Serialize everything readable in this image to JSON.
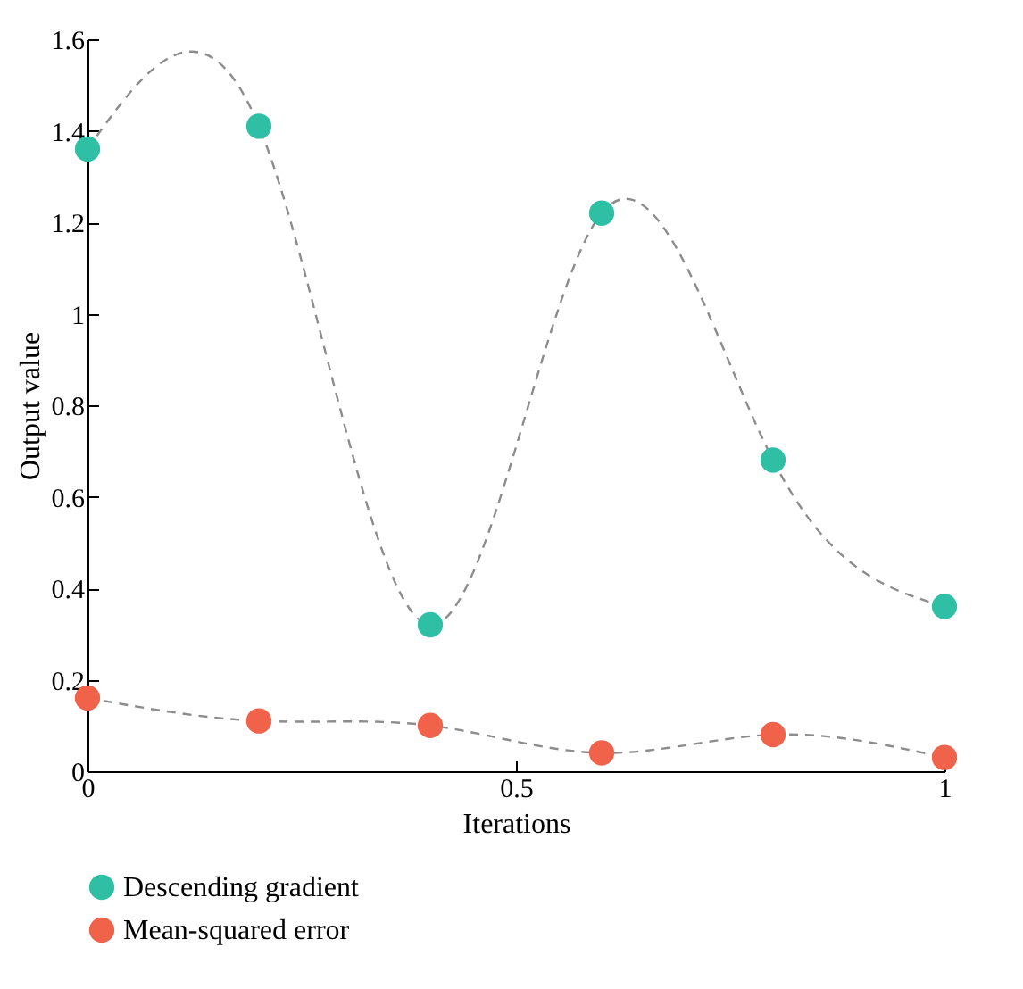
{
  "chart_data": {
    "type": "line",
    "xlabel": "Iterations",
    "ylabel": "Output value",
    "x": [
      0,
      0.2,
      0.4,
      0.6,
      0.8,
      1
    ],
    "series": [
      {
        "name": "Descending gradient",
        "color": "#2ebfa5",
        "values": [
          1.36,
          1.41,
          0.32,
          1.22,
          0.68,
          0.36
        ]
      },
      {
        "name": "Mean-squared error",
        "color": "#f0624a",
        "values": [
          0.16,
          0.11,
          0.1,
          0.04,
          0.08,
          0.03
        ]
      }
    ],
    "xlim": [
      0,
      1
    ],
    "xticks": [
      0,
      0.5,
      1
    ],
    "ylim": [
      0,
      1.6
    ],
    "yticks": [
      0,
      0.2,
      0.4,
      0.6,
      0.8,
      1,
      1.2,
      1.4,
      1.6
    ],
    "marker": "circle",
    "line_style": "dashed",
    "legend": "bottom",
    "grid": false
  }
}
